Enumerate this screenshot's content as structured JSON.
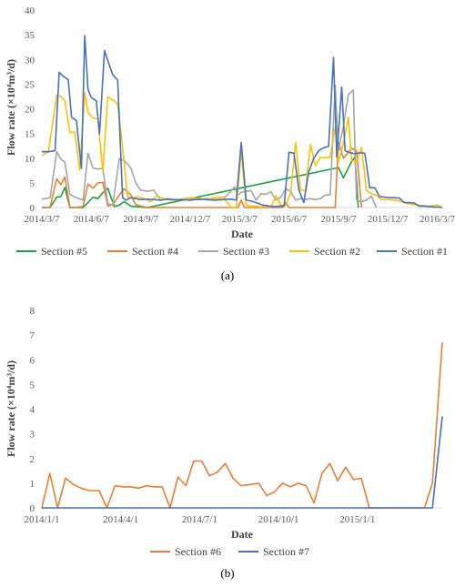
{
  "chart_data": [
    {
      "panel": "(a)",
      "type": "line",
      "xlabel": "Date",
      "ylabel": "Flow rate (×10⁴m³/d)",
      "ylim": [
        0,
        40
      ],
      "yticks": [
        0,
        5,
        10,
        15,
        20,
        25,
        30,
        35,
        40
      ],
      "xlim": [
        0,
        24.3
      ],
      "xticks": [
        {
          "x": 0,
          "label": "2014/3/7"
        },
        {
          "x": 3,
          "label": "2014/6/7"
        },
        {
          "x": 6,
          "label": "2014/9/7"
        },
        {
          "x": 9,
          "label": "2014/12/7"
        },
        {
          "x": 12,
          "label": "2015/3/7"
        },
        {
          "x": 15,
          "label": "2015/6/7"
        },
        {
          "x": 18,
          "label": "2015/9/7"
        },
        {
          "x": 21,
          "label": "2015/12/7"
        },
        {
          "x": 24,
          "label": "2016/3/7"
        }
      ],
      "grid": false,
      "legend": "bottom",
      "series": [
        {
          "name": "Section #5",
          "color": "#1aa33d",
          "x": [
            0,
            0.5,
            0.9,
            1.15,
            1.4,
            1.7,
            2.0,
            2.5,
            2.8,
            3.1,
            3.4,
            3.7,
            4.0,
            4.4,
            4.7,
            5.0,
            5.4,
            5.7,
            6.0,
            6.4,
            18.0,
            18.3,
            18.8,
            19.0,
            19.2
          ],
          "y": [
            0,
            0,
            2.1,
            2.2,
            4.1,
            0,
            0,
            0,
            1.0,
            2.1,
            1.8,
            3.0,
            3.9,
            0.2,
            0.5,
            1.2,
            0.3,
            0.2,
            0.1,
            0,
            8.1,
            6.0,
            9.3,
            10.2,
            0
          ]
        },
        {
          "name": "Section #4",
          "color": "#ed7d31",
          "x": [
            0,
            0.5,
            0.9,
            1.15,
            1.4,
            1.7,
            2.0,
            2.5,
            2.8,
            3.1,
            3.4,
            3.7,
            4.0,
            4.3,
            4.7,
            5.0,
            5.4,
            5.7,
            6.0,
            6.4,
            11.9,
            12.1,
            12.3,
            14.6,
            14.8,
            15.0,
            17.8,
            18.0,
            18.3,
            18.8,
            19.1,
            19.4
          ],
          "y": [
            0,
            0.1,
            5.8,
            4.6,
            6.2,
            0,
            0,
            0.2,
            4.8,
            3.9,
            5.0,
            5.1,
            0.3,
            0.6,
            2.5,
            3.8,
            2.5,
            0.6,
            0.3,
            0,
            0,
            1.5,
            0,
            0,
            1.0,
            0,
            0,
            13.2,
            10.0,
            12.0,
            11.5,
            0
          ]
        },
        {
          "name": "Section #3",
          "color": "#a5a5a5",
          "x": [
            0,
            0.5,
            0.9,
            1.15,
            1.4,
            1.7,
            2.0,
            2.5,
            2.8,
            3.1,
            3.4,
            3.7,
            4.0,
            4.3,
            4.7,
            5.0,
            5.4,
            5.7,
            6.0,
            6.4,
            6.8,
            7.2,
            7.6,
            8.0,
            8.5,
            9.0,
            9.5,
            10.0,
            10.5,
            11.0,
            11.5,
            11.7,
            11.9,
            12.1,
            12.4,
            12.7,
            13.0,
            13.3,
            13.6,
            13.9,
            14.2,
            14.5,
            14.8,
            15.1,
            15.4,
            15.7,
            16.0,
            16.3,
            16.6,
            16.9,
            17.2,
            17.5,
            17.8,
            18.0,
            18.3,
            18.6,
            18.9,
            19.1,
            19.4,
            19.7,
            20.0,
            20.3
          ],
          "y": [
            1.7,
            2.0,
            11.3,
            9.8,
            9.2,
            2.7,
            2.1,
            1.5,
            11.0,
            8.0,
            7.8,
            7.9,
            0.8,
            0.5,
            9.9,
            9.5,
            8.0,
            5.0,
            3.5,
            3.3,
            3.5,
            1.5,
            1.8,
            1.6,
            1.6,
            1.8,
            1.6,
            1.8,
            1.6,
            1.7,
            3.4,
            4.2,
            2.5,
            3.1,
            3.3,
            3.4,
            1.5,
            2.8,
            2.7,
            3.2,
            1.5,
            2.1,
            3.8,
            3.3,
            1.5,
            1.8,
            1.6,
            1.8,
            1.6,
            1.8,
            2.5,
            2.6,
            24.8,
            11.5,
            16.5,
            22.8,
            23.8,
            1.5,
            1.2,
            1.5,
            2.3,
            0
          ]
        },
        {
          "name": "Section #2",
          "color": "#ffc000",
          "x": [
            0,
            0.4,
            0.9,
            1.15,
            1.4,
            1.7,
            2.0,
            2.3,
            2.6,
            2.8,
            3.1,
            3.4,
            3.7,
            4.0,
            4.3,
            4.6,
            4.9,
            5.2,
            5.5,
            5.8,
            6.2,
            6.6,
            7.0,
            7.5,
            8.0,
            8.5,
            9.0,
            9.5,
            10.0,
            10.5,
            11.0,
            11.5,
            11.8,
            12.1,
            12.4,
            12.7,
            13.0,
            13.3,
            13.6,
            13.9,
            14.2,
            14.5,
            14.8,
            15.1,
            15.4,
            15.7,
            16.0,
            16.3,
            16.6,
            16.9,
            17.2,
            17.5,
            17.8,
            18.0,
            18.3,
            18.6,
            18.8,
            19.1,
            19.4,
            19.7,
            20.0,
            20.3,
            20.6,
            21.0,
            21.5,
            22.0,
            22.5,
            23.0,
            23.5,
            24.0,
            24.3
          ],
          "y": [
            10.5,
            11.3,
            22.7,
            22.5,
            21.6,
            15.2,
            15.3,
            7.6,
            23.3,
            19.3,
            18.1,
            17.9,
            7.3,
            22.4,
            21.8,
            21.0,
            12.2,
            2.1,
            1.9,
            2.2,
            1.8,
            1.2,
            2.4,
            1.6,
            1.5,
            1.7,
            2.0,
            1.9,
            1.6,
            2.0,
            2.1,
            0,
            0,
            11.4,
            0.5,
            0.3,
            0.3,
            0.1,
            0.5,
            0.1,
            2.4,
            0.5,
            0.4,
            3.0,
            13.2,
            3.5,
            3.5,
            12.8,
            8.5,
            10.1,
            10.1,
            10.2,
            16.3,
            9.3,
            13.0,
            18.3,
            9.5,
            9.3,
            12.2,
            3.5,
            2.8,
            2.5,
            1.6,
            1.6,
            1.5,
            1.0,
            0.6,
            0.4,
            0.3,
            0.5,
            0
          ]
        },
        {
          "name": "Section #1",
          "color": "#4472c4",
          "x": [
            0,
            0.4,
            0.8,
            1.05,
            1.3,
            1.6,
            1.8,
            2.1,
            2.4,
            2.6,
            2.8,
            3.0,
            3.3,
            3.5,
            3.8,
            4.1,
            4.3,
            4.6,
            4.9,
            5.1,
            5.4,
            5.7,
            6.0,
            6.4,
            6.8,
            7.2,
            7.6,
            8.0,
            8.5,
            9.0,
            9.5,
            10.0,
            10.5,
            11.0,
            11.5,
            11.8,
            12.1,
            12.4,
            12.7,
            13.0,
            13.4,
            13.8,
            14.1,
            14.4,
            14.7,
            15.0,
            15.3,
            15.6,
            15.9,
            16.2,
            16.5,
            16.8,
            17.1,
            17.4,
            17.7,
            17.9,
            18.2,
            18.4,
            18.7,
            19.0,
            19.3,
            19.6,
            19.9,
            20.2,
            20.5,
            20.8,
            21.1,
            21.4,
            21.7,
            22.0,
            22.3,
            22.6,
            22.9,
            23.2,
            23.5,
            23.8,
            24.1,
            24.3
          ],
          "y": [
            11.3,
            11.3,
            11.5,
            27.4,
            26.6,
            25.9,
            18.3,
            17.6,
            7.9,
            34.8,
            23.9,
            22.3,
            21.6,
            14.9,
            31.8,
            28.8,
            26.9,
            25.8,
            2.0,
            1.5,
            2.0,
            1.8,
            1.6,
            1.7,
            1.6,
            1.5,
            1.7,
            1.6,
            1.6,
            1.5,
            1.7,
            1.6,
            1.5,
            1.6,
            1.7,
            1.5,
            13.2,
            1.5,
            1.3,
            1.0,
            0.5,
            0.3,
            0.2,
            0.3,
            0.3,
            11.2,
            11.0,
            3.5,
            1.0,
            7.2,
            10.0,
            11.5,
            12.1,
            12.4,
            30.4,
            10.2,
            24.4,
            11.5,
            11.1,
            10.9,
            11.1,
            11.0,
            4.0,
            4.0,
            2.2,
            2.1,
            2.0,
            2.0,
            1.9,
            1.0,
            1.0,
            0.9,
            0.3,
            0.3,
            0.2,
            0.1,
            0.1,
            0
          ]
        }
      ],
      "caption": "(a)"
    },
    {
      "panel": "(b)",
      "type": "line",
      "xlabel": "Date",
      "ylabel": "Flow rate (×10⁴m³/d)",
      "ylim": [
        0,
        8
      ],
      "yticks": [
        0,
        1,
        2,
        3,
        4,
        5,
        6,
        7,
        8
      ],
      "xlim": [
        0,
        20.3
      ],
      "xticks": [
        {
          "x": 0,
          "label": "2014/1/1"
        },
        {
          "x": 4,
          "label": "2014/4/1"
        },
        {
          "x": 8,
          "label": "2014/7/1"
        },
        {
          "x": 12,
          "label": "2014/10/1"
        },
        {
          "x": 16,
          "label": "2015/1/1"
        }
      ],
      "grid": false,
      "legend": "bottom",
      "series": [
        {
          "name": "Section #6",
          "color": "#ed7d31",
          "x": [
            0,
            0.4,
            0.8,
            1.2,
            1.6,
            2.0,
            2.4,
            2.9,
            3.3,
            3.7,
            4.1,
            4.5,
            4.9,
            5.3,
            5.7,
            6.1,
            6.5,
            6.9,
            7.3,
            7.7,
            8.1,
            8.5,
            8.9,
            9.3,
            9.7,
            10.1,
            10.6,
            11.0,
            11.4,
            11.8,
            12.2,
            12.6,
            13.0,
            13.4,
            13.8,
            14.2,
            14.6,
            15.0,
            15.4,
            15.8,
            16.2,
            16.6,
            17.0,
            17.4,
            17.8,
            18.2,
            18.6,
            19.0,
            19.4,
            19.8,
            20.3
          ],
          "y": [
            0,
            1.4,
            0,
            1.2,
            0.95,
            0.8,
            0.7,
            0.7,
            0,
            0.9,
            0.85,
            0.85,
            0.8,
            0.9,
            0.85,
            0.85,
            0,
            1.25,
            0.9,
            1.9,
            1.9,
            1.3,
            1.45,
            1.8,
            1.2,
            0.9,
            0.95,
            1.0,
            0.5,
            0.65,
            1.0,
            0.85,
            1.0,
            0.9,
            0.2,
            1.4,
            1.8,
            1.1,
            1.65,
            1.15,
            1.2,
            0,
            0,
            0,
            0,
            0,
            0,
            0,
            0,
            1.0,
            6.7
          ]
        },
        {
          "name": "Section #7",
          "color": "#4472c4",
          "x": [
            0,
            19.8,
            20.3
          ],
          "y": [
            0,
            0,
            3.7
          ]
        }
      ],
      "caption": "(b)"
    }
  ]
}
